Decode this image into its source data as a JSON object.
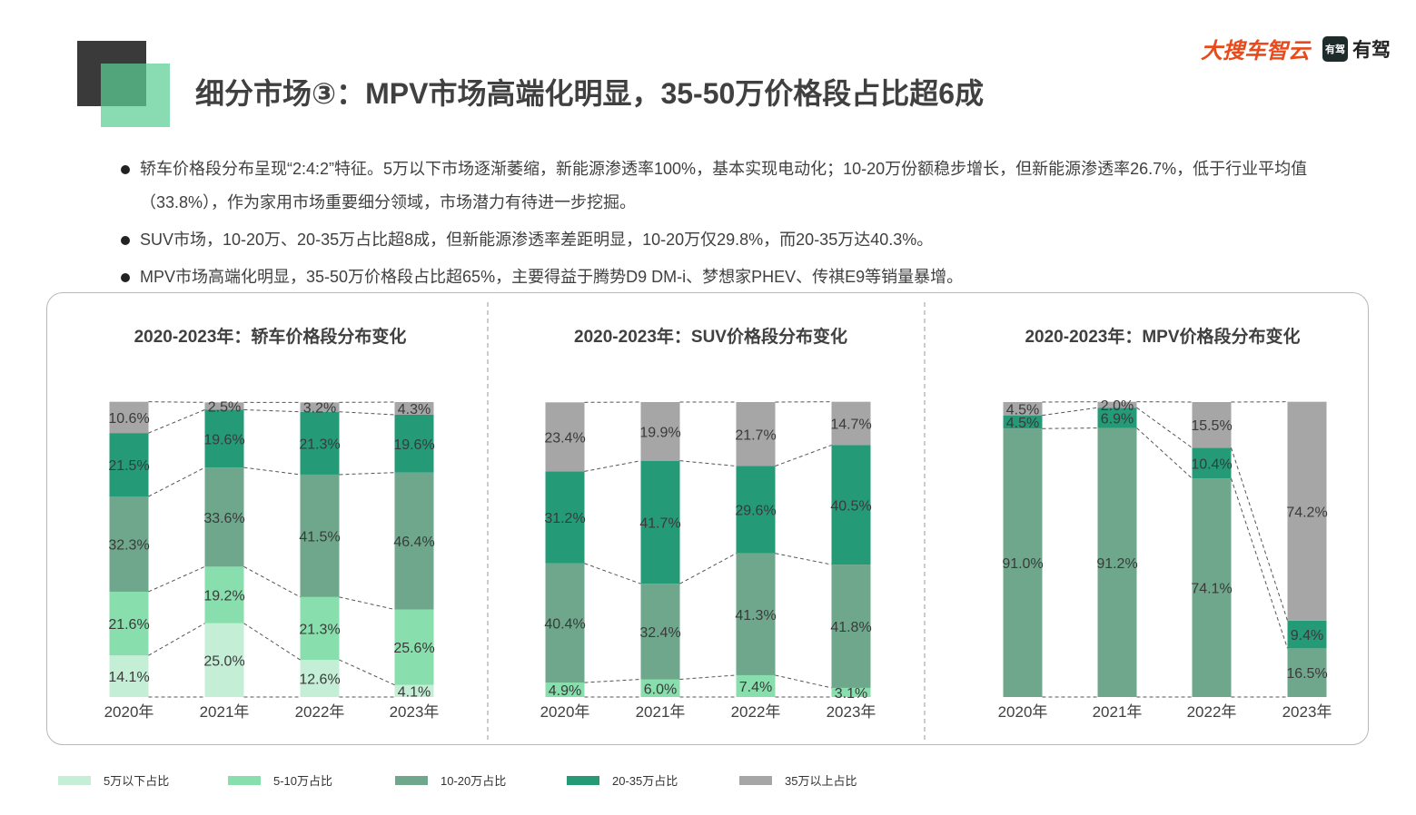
{
  "title": "细分市场③：MPV市场高端化明显，35-50万价格段占比超6成",
  "brand": {
    "primary": "大搜车智云",
    "secondary": "有驾",
    "secondary_icon_text": "有驾"
  },
  "bullets": [
    "轿车价格段分布呈现“2:4:2”特征。5万以下市场逐渐萎缩，新能源渗透率100%，基本实现电动化；10-20万份额稳步增长，但新能源渗透率26.7%，低于行业平均值（33.8%），作为家用市场重要细分领域，市场潜力有待进一步挖掘。",
    "SUV市场，10-20万、20-35万占比超8成，但新能源渗透率差距明显，10-20万仅29.8%，而20-35万达40.3%。",
    "MPV市场高端化明显，35-50万价格段占比超65%，主要得益于腾势D9 DM-i、梦想家PHEV、传祺E9等销量暴增。"
  ],
  "colors": {
    "under5": "#c4eed6",
    "5to10": "#88deac",
    "10to20": "#6fa78c",
    "20to35": "#249a76",
    "over35": "#a6a6a6"
  },
  "legend": [
    {
      "key": "under5",
      "label": "5万以下占比"
    },
    {
      "key": "5to10",
      "label": "5-10万占比"
    },
    {
      "key": "10to20",
      "label": "10-20万占比"
    },
    {
      "key": "20to35",
      "label": "20-35万占比"
    },
    {
      "key": "over35",
      "label": "35万以上占比"
    }
  ],
  "chart_data": [
    {
      "type": "bar",
      "stacked": true,
      "title": "2020-2023年：轿车价格段分布变化",
      "categories": [
        "2020年",
        "2021年",
        "2022年",
        "2023年"
      ],
      "series": [
        {
          "key": "under5",
          "values": [
            14.1,
            25.0,
            12.6,
            4.1
          ],
          "labels": [
            "14.1%",
            "25.0%",
            "12.6%",
            "4.1%"
          ]
        },
        {
          "key": "5to10",
          "values": [
            21.6,
            19.2,
            21.3,
            25.6
          ],
          "labels": [
            "21.6%",
            "19.2%",
            "21.3%",
            "25.6%"
          ]
        },
        {
          "key": "10to20",
          "values": [
            32.3,
            33.6,
            41.5,
            46.4
          ],
          "labels": [
            "32.3%",
            "33.6%",
            "41.5%",
            "46.4%"
          ]
        },
        {
          "key": "20to35",
          "values": [
            21.5,
            19.6,
            21.3,
            19.6
          ],
          "labels": [
            "21.5%",
            "19.6%",
            "21.3%",
            "19.6%"
          ]
        },
        {
          "key": "over35",
          "values": [
            10.6,
            2.5,
            3.2,
            4.3
          ],
          "labels": [
            "10.6%",
            "2.5%",
            "3.2%",
            "4.3%"
          ]
        }
      ],
      "ylim": [
        0,
        100
      ]
    },
    {
      "type": "bar",
      "stacked": true,
      "title": "2020-2023年：SUV价格段分布变化",
      "categories": [
        "2020年",
        "2021年",
        "2022年",
        "2023年"
      ],
      "series": [
        {
          "key": "5to10",
          "values": [
            4.9,
            6.0,
            7.4,
            3.1
          ],
          "labels": [
            "4.9%",
            "6.0%",
            "7.4%",
            "3.1%"
          ]
        },
        {
          "key": "10to20",
          "values": [
            40.4,
            32.4,
            41.3,
            41.8
          ],
          "labels": [
            "40.4%",
            "32.4%",
            "41.3%",
            "41.8%"
          ]
        },
        {
          "key": "20to35",
          "values": [
            31.2,
            41.7,
            29.6,
            40.5
          ],
          "labels": [
            "31.2%",
            "41.7%",
            "29.6%",
            "40.5%"
          ]
        },
        {
          "key": "over35",
          "values": [
            23.4,
            19.9,
            21.7,
            14.7
          ],
          "labels": [
            "23.4%",
            "19.9%",
            "21.7%",
            "14.7%"
          ]
        }
      ],
      "ylim": [
        0,
        100
      ]
    },
    {
      "type": "bar",
      "stacked": true,
      "title": "2020-2023年：MPV价格段分布变化",
      "categories": [
        "2020年",
        "2021年",
        "2022年",
        "2023年"
      ],
      "series": [
        {
          "key": "10to20",
          "values": [
            91.0,
            91.2,
            74.1,
            16.5
          ],
          "labels": [
            "91.0%",
            "91.2%",
            "74.1%",
            "16.5%"
          ]
        },
        {
          "key": "20to35",
          "values": [
            4.5,
            6.9,
            10.4,
            9.4
          ],
          "labels": [
            "4.5%",
            "6.9%",
            "10.4%",
            "9.4%"
          ]
        },
        {
          "key": "over35",
          "values": [
            4.5,
            2.0,
            15.5,
            74.2
          ],
          "labels": [
            "4.5%",
            "2.0%",
            "15.5%",
            "74.2%"
          ]
        }
      ],
      "ylim": [
        0,
        100
      ]
    }
  ]
}
